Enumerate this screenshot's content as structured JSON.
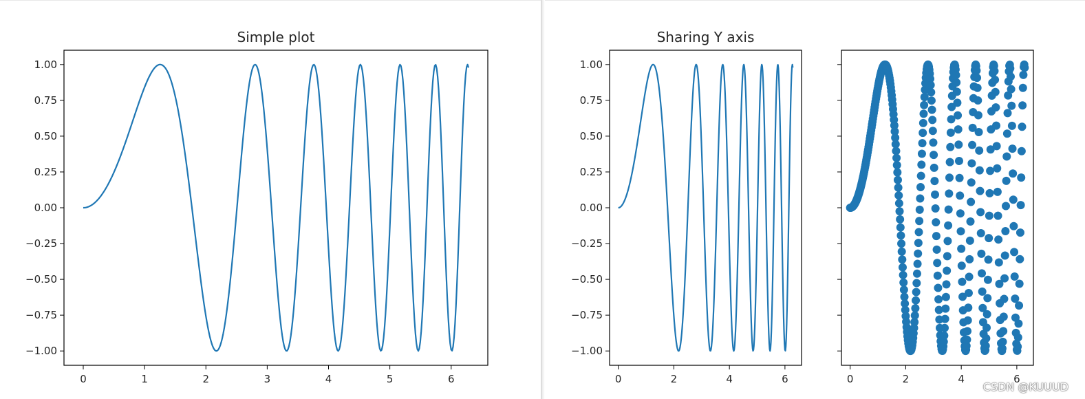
{
  "colors": {
    "series": "#1f77b4",
    "axis": "#000000",
    "text": "#262626"
  },
  "watermark": "CSDN @KUUUD",
  "chart_data": [
    {
      "type": "line",
      "title": "Simple plot",
      "function": "sin(x^2)",
      "x_range": [
        0,
        6.2832
      ],
      "num_points": 400,
      "xlim": [
        -0.3142,
        6.5973
      ],
      "ylim": [
        -1.1,
        1.1
      ],
      "xticks": [
        0,
        1,
        2,
        3,
        4,
        5,
        6
      ],
      "yticks": [
        1.0,
        0.75,
        0.5,
        0.25,
        0.0,
        -0.25,
        -0.5,
        -0.75,
        -1.0
      ],
      "ytick_labels": [
        "1.00",
        "0.75",
        "0.50",
        "0.25",
        "0.00",
        "−0.25",
        "−0.50",
        "−0.75",
        "−1.00"
      ],
      "xlabel": "",
      "ylabel": "",
      "grid": false
    },
    {
      "type": "line",
      "title": "Sharing Y axis",
      "function": "sin(x^2)",
      "x_range": [
        0,
        6.2832
      ],
      "num_points": 400,
      "xlim": [
        -0.3142,
        6.5973
      ],
      "ylim": [
        -1.1,
        1.1
      ],
      "xticks": [
        0,
        2,
        4,
        6
      ],
      "yticks": [
        1.0,
        0.75,
        0.5,
        0.25,
        0.0,
        -0.25,
        -0.5,
        -0.75,
        -1.0
      ],
      "ytick_labels": [
        "1.00",
        "0.75",
        "0.50",
        "0.25",
        "0.00",
        "−0.25",
        "−0.50",
        "−0.75",
        "−1.00"
      ],
      "xlabel": "",
      "ylabel": "",
      "grid": false
    },
    {
      "type": "scatter",
      "title": "",
      "function": "sin(x^2)",
      "x_range": [
        0,
        6.2832
      ],
      "num_points": 400,
      "xlim": [
        -0.3142,
        6.5973
      ],
      "ylim": [
        -1.1,
        1.1
      ],
      "xticks": [
        0,
        2,
        4,
        6
      ],
      "yticks": [
        1.0,
        0.75,
        0.5,
        0.25,
        0.0,
        -0.25,
        -0.5,
        -0.75,
        -1.0
      ],
      "ytick_labels": [],
      "sharey": true,
      "xlabel": "",
      "ylabel": "",
      "grid": false
    }
  ]
}
